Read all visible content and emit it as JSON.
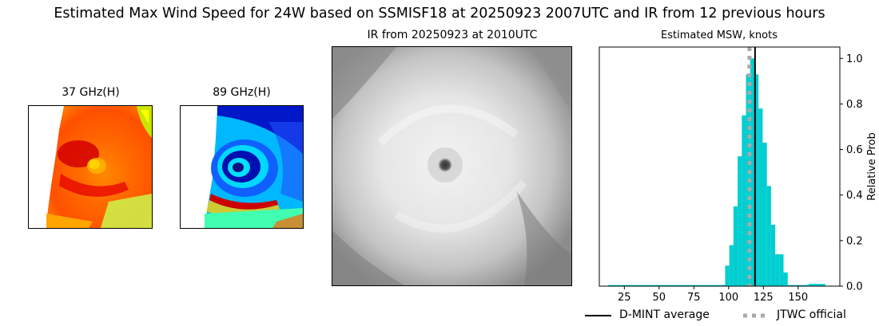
{
  "figure": {
    "title": "Estimated Max Wind Speed for 24W based on SSMISF18 at 20250923 2007UTC and IR from 12 previous hours"
  },
  "panels": {
    "p37": {
      "title": "37 GHz(H)"
    },
    "p89": {
      "title": "89 GHz(H)"
    },
    "ir": {
      "title": "IR from 20250923 at 2010UTC"
    }
  },
  "colors": {
    "histogram": "#00ced1",
    "dmint_line": "#000000",
    "jtwc_line": "#a9a9a9"
  },
  "chart_data": {
    "type": "bar",
    "title": "Estimated MSW, knots",
    "xlabel": "",
    "ylabel": "Relative Prob",
    "xlim": [
      7,
      180
    ],
    "ylim": [
      0,
      1.05
    ],
    "xticks": [
      25,
      50,
      75,
      100,
      125,
      150
    ],
    "yticks": [
      0.0,
      0.2,
      0.4,
      0.6,
      0.8,
      1.0
    ],
    "ytick_labels": [
      "0.0",
      "0.2",
      "0.4",
      "0.6",
      "0.8",
      "1.0"
    ],
    "y_axis_side": "right",
    "bin_width": 3,
    "bins": [
      {
        "x": 15,
        "value": 0.005
      },
      {
        "x": 18,
        "value": 0.005
      },
      {
        "x": 21,
        "value": 0.005
      },
      {
        "x": 24,
        "value": 0.005
      },
      {
        "x": 27,
        "value": 0.005
      },
      {
        "x": 30,
        "value": 0.005
      },
      {
        "x": 33,
        "value": 0.005
      },
      {
        "x": 36,
        "value": 0.005
      },
      {
        "x": 39,
        "value": 0.005
      },
      {
        "x": 42,
        "value": 0.005
      },
      {
        "x": 45,
        "value": 0.005
      },
      {
        "x": 48,
        "value": 0.005
      },
      {
        "x": 51,
        "value": 0.005
      },
      {
        "x": 54,
        "value": 0.005
      },
      {
        "x": 57,
        "value": 0.005
      },
      {
        "x": 60,
        "value": 0.005
      },
      {
        "x": 63,
        "value": 0.005
      },
      {
        "x": 66,
        "value": 0.005
      },
      {
        "x": 69,
        "value": 0.005
      },
      {
        "x": 72,
        "value": 0.005
      },
      {
        "x": 75,
        "value": 0.005
      },
      {
        "x": 78,
        "value": 0.005
      },
      {
        "x": 81,
        "value": 0.005
      },
      {
        "x": 84,
        "value": 0.005
      },
      {
        "x": 87,
        "value": 0.005
      },
      {
        "x": 90,
        "value": 0.005
      },
      {
        "x": 93,
        "value": 0.005
      },
      {
        "x": 96,
        "value": 0.005
      },
      {
        "x": 99,
        "value": 0.09
      },
      {
        "x": 102,
        "value": 0.18
      },
      {
        "x": 105,
        "value": 0.35
      },
      {
        "x": 108,
        "value": 0.57
      },
      {
        "x": 111,
        "value": 0.75
      },
      {
        "x": 114,
        "value": 0.93
      },
      {
        "x": 117,
        "value": 1.0
      },
      {
        "x": 120,
        "value": 0.93
      },
      {
        "x": 123,
        "value": 0.78
      },
      {
        "x": 126,
        "value": 0.63
      },
      {
        "x": 129,
        "value": 0.44
      },
      {
        "x": 132,
        "value": 0.27
      },
      {
        "x": 135,
        "value": 0.14
      },
      {
        "x": 138,
        "value": 0.14
      },
      {
        "x": 141,
        "value": 0.06
      },
      {
        "x": 144,
        "value": 0.005
      },
      {
        "x": 147,
        "value": 0.005
      },
      {
        "x": 150,
        "value": 0.005
      },
      {
        "x": 153,
        "value": 0.005
      },
      {
        "x": 156,
        "value": 0.005
      },
      {
        "x": 159,
        "value": 0.01
      },
      {
        "x": 162,
        "value": 0.01
      },
      {
        "x": 165,
        "value": 0.01
      },
      {
        "x": 168,
        "value": 0.01
      }
    ],
    "vlines": [
      {
        "name": "D-MINT average",
        "x": 119,
        "style": "solid",
        "color": "#000000"
      },
      {
        "name": "JTWC official",
        "x": 115,
        "style": "dotted",
        "color": "#a9a9a9"
      }
    ],
    "legend": {
      "placement": "bottom",
      "entries": [
        "D-MINT average",
        "JTWC official"
      ]
    }
  }
}
